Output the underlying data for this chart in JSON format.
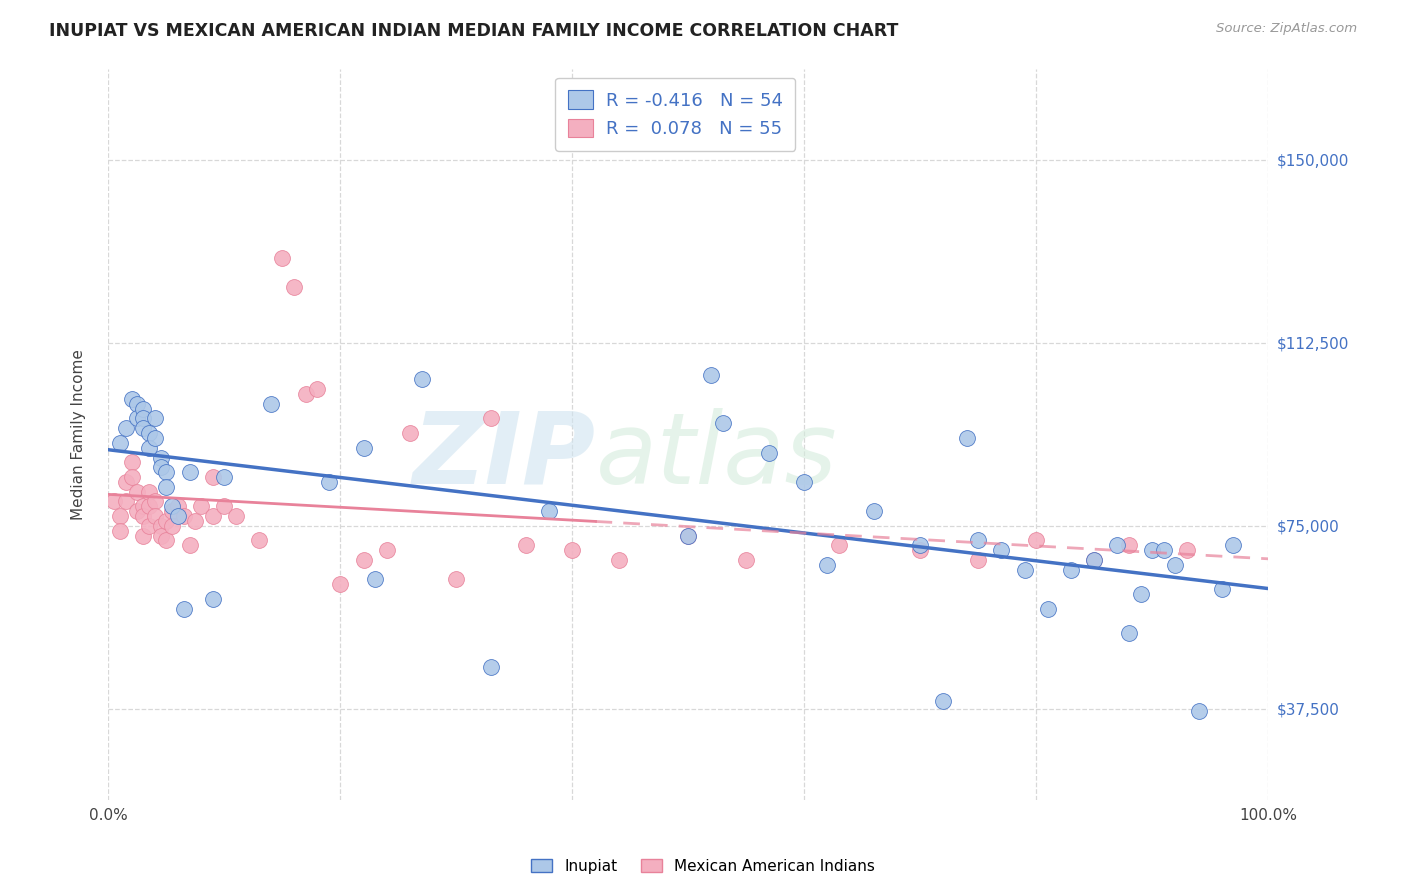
{
  "title": "INUPIAT VS MEXICAN AMERICAN INDIAN MEDIAN FAMILY INCOME CORRELATION CHART",
  "source": "Source: ZipAtlas.com",
  "ylabel": "Median Family Income",
  "ytick_labels": [
    "$37,500",
    "$75,000",
    "$112,500",
    "$150,000"
  ],
  "ytick_values": [
    37500,
    75000,
    112500,
    150000
  ],
  "ymin": 18750,
  "ymax": 168750,
  "xmin": 0.0,
  "xmax": 1.0,
  "inupiat_R": -0.416,
  "inupiat_N": 54,
  "mexican_R": 0.078,
  "mexican_N": 55,
  "inupiat_color": "#adc8e8",
  "mexican_color": "#f4afc0",
  "inupiat_line_color": "#4472c4",
  "mexican_line_color": "#e8829a",
  "mexican_line_dash_color": "#e8b0bc",
  "background_color": "#ffffff",
  "grid_color": "#d8d8d8",
  "inupiat_x": [
    0.01,
    0.015,
    0.02,
    0.025,
    0.025,
    0.03,
    0.03,
    0.03,
    0.035,
    0.035,
    0.04,
    0.04,
    0.045,
    0.045,
    0.05,
    0.05,
    0.055,
    0.06,
    0.065,
    0.07,
    0.09,
    0.1,
    0.14,
    0.19,
    0.22,
    0.23,
    0.27,
    0.33,
    0.38,
    0.5,
    0.52,
    0.53,
    0.57,
    0.6,
    0.62,
    0.66,
    0.7,
    0.72,
    0.74,
    0.75,
    0.77,
    0.79,
    0.81,
    0.83,
    0.85,
    0.87,
    0.88,
    0.89,
    0.9,
    0.91,
    0.92,
    0.94,
    0.96,
    0.97
  ],
  "inupiat_y": [
    92000,
    95000,
    101000,
    100000,
    97000,
    99000,
    97000,
    95000,
    94000,
    91000,
    97000,
    93000,
    89000,
    87000,
    86000,
    83000,
    79000,
    77000,
    58000,
    86000,
    60000,
    85000,
    100000,
    84000,
    91000,
    64000,
    105000,
    46000,
    78000,
    73000,
    106000,
    96000,
    90000,
    84000,
    67000,
    78000,
    71000,
    39000,
    93000,
    72000,
    70000,
    66000,
    58000,
    66000,
    68000,
    71000,
    53000,
    61000,
    70000,
    70000,
    67000,
    37000,
    62000,
    71000
  ],
  "mexican_x": [
    0.005,
    0.01,
    0.01,
    0.015,
    0.015,
    0.02,
    0.02,
    0.025,
    0.025,
    0.03,
    0.03,
    0.03,
    0.035,
    0.035,
    0.035,
    0.04,
    0.04,
    0.045,
    0.045,
    0.05,
    0.05,
    0.055,
    0.055,
    0.06,
    0.065,
    0.07,
    0.075,
    0.08,
    0.09,
    0.09,
    0.1,
    0.11,
    0.13,
    0.15,
    0.16,
    0.17,
    0.18,
    0.2,
    0.22,
    0.24,
    0.26,
    0.3,
    0.33,
    0.36,
    0.4,
    0.44,
    0.5,
    0.55,
    0.63,
    0.7,
    0.75,
    0.8,
    0.85,
    0.88,
    0.93
  ],
  "mexican_y": [
    80000,
    77000,
    74000,
    84000,
    80000,
    88000,
    85000,
    82000,
    78000,
    79000,
    77000,
    73000,
    82000,
    79000,
    75000,
    80000,
    77000,
    75000,
    73000,
    76000,
    72000,
    78000,
    75000,
    79000,
    77000,
    71000,
    76000,
    79000,
    85000,
    77000,
    79000,
    77000,
    72000,
    130000,
    124000,
    102000,
    103000,
    63000,
    68000,
    70000,
    94000,
    64000,
    97000,
    71000,
    70000,
    68000,
    73000,
    68000,
    71000,
    70000,
    68000,
    72000,
    68000,
    71000,
    70000
  ]
}
